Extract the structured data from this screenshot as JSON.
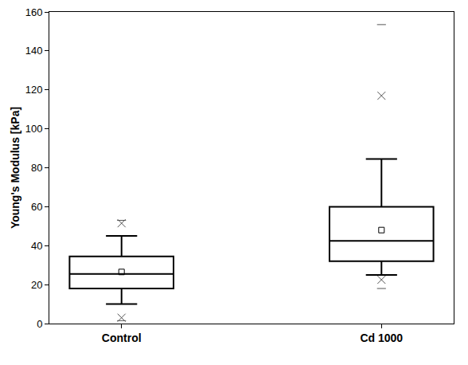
{
  "chart_data": {
    "type": "box",
    "ylabel": "Young's Modulus [kPa]",
    "categories": [
      "Control",
      "Cd 1000"
    ],
    "q1": [
      18,
      32
    ],
    "median": [
      25.5,
      42.5
    ],
    "q3": [
      34.5,
      60
    ],
    "whisker_low": [
      10,
      25
    ],
    "whisker_high": [
      45,
      84.5
    ],
    "mean": [
      26.5,
      48
    ],
    "p1": [
      3,
      22.5
    ],
    "p99": [
      51.5,
      117
    ],
    "min": [
      1.5,
      18
    ],
    "max": [
      53,
      153.5
    ],
    "color": "#000000",
    "ylim": [
      0,
      160
    ],
    "yticks": [
      0,
      20,
      40,
      60,
      80,
      100,
      120,
      140,
      160
    ],
    "grid": false
  }
}
